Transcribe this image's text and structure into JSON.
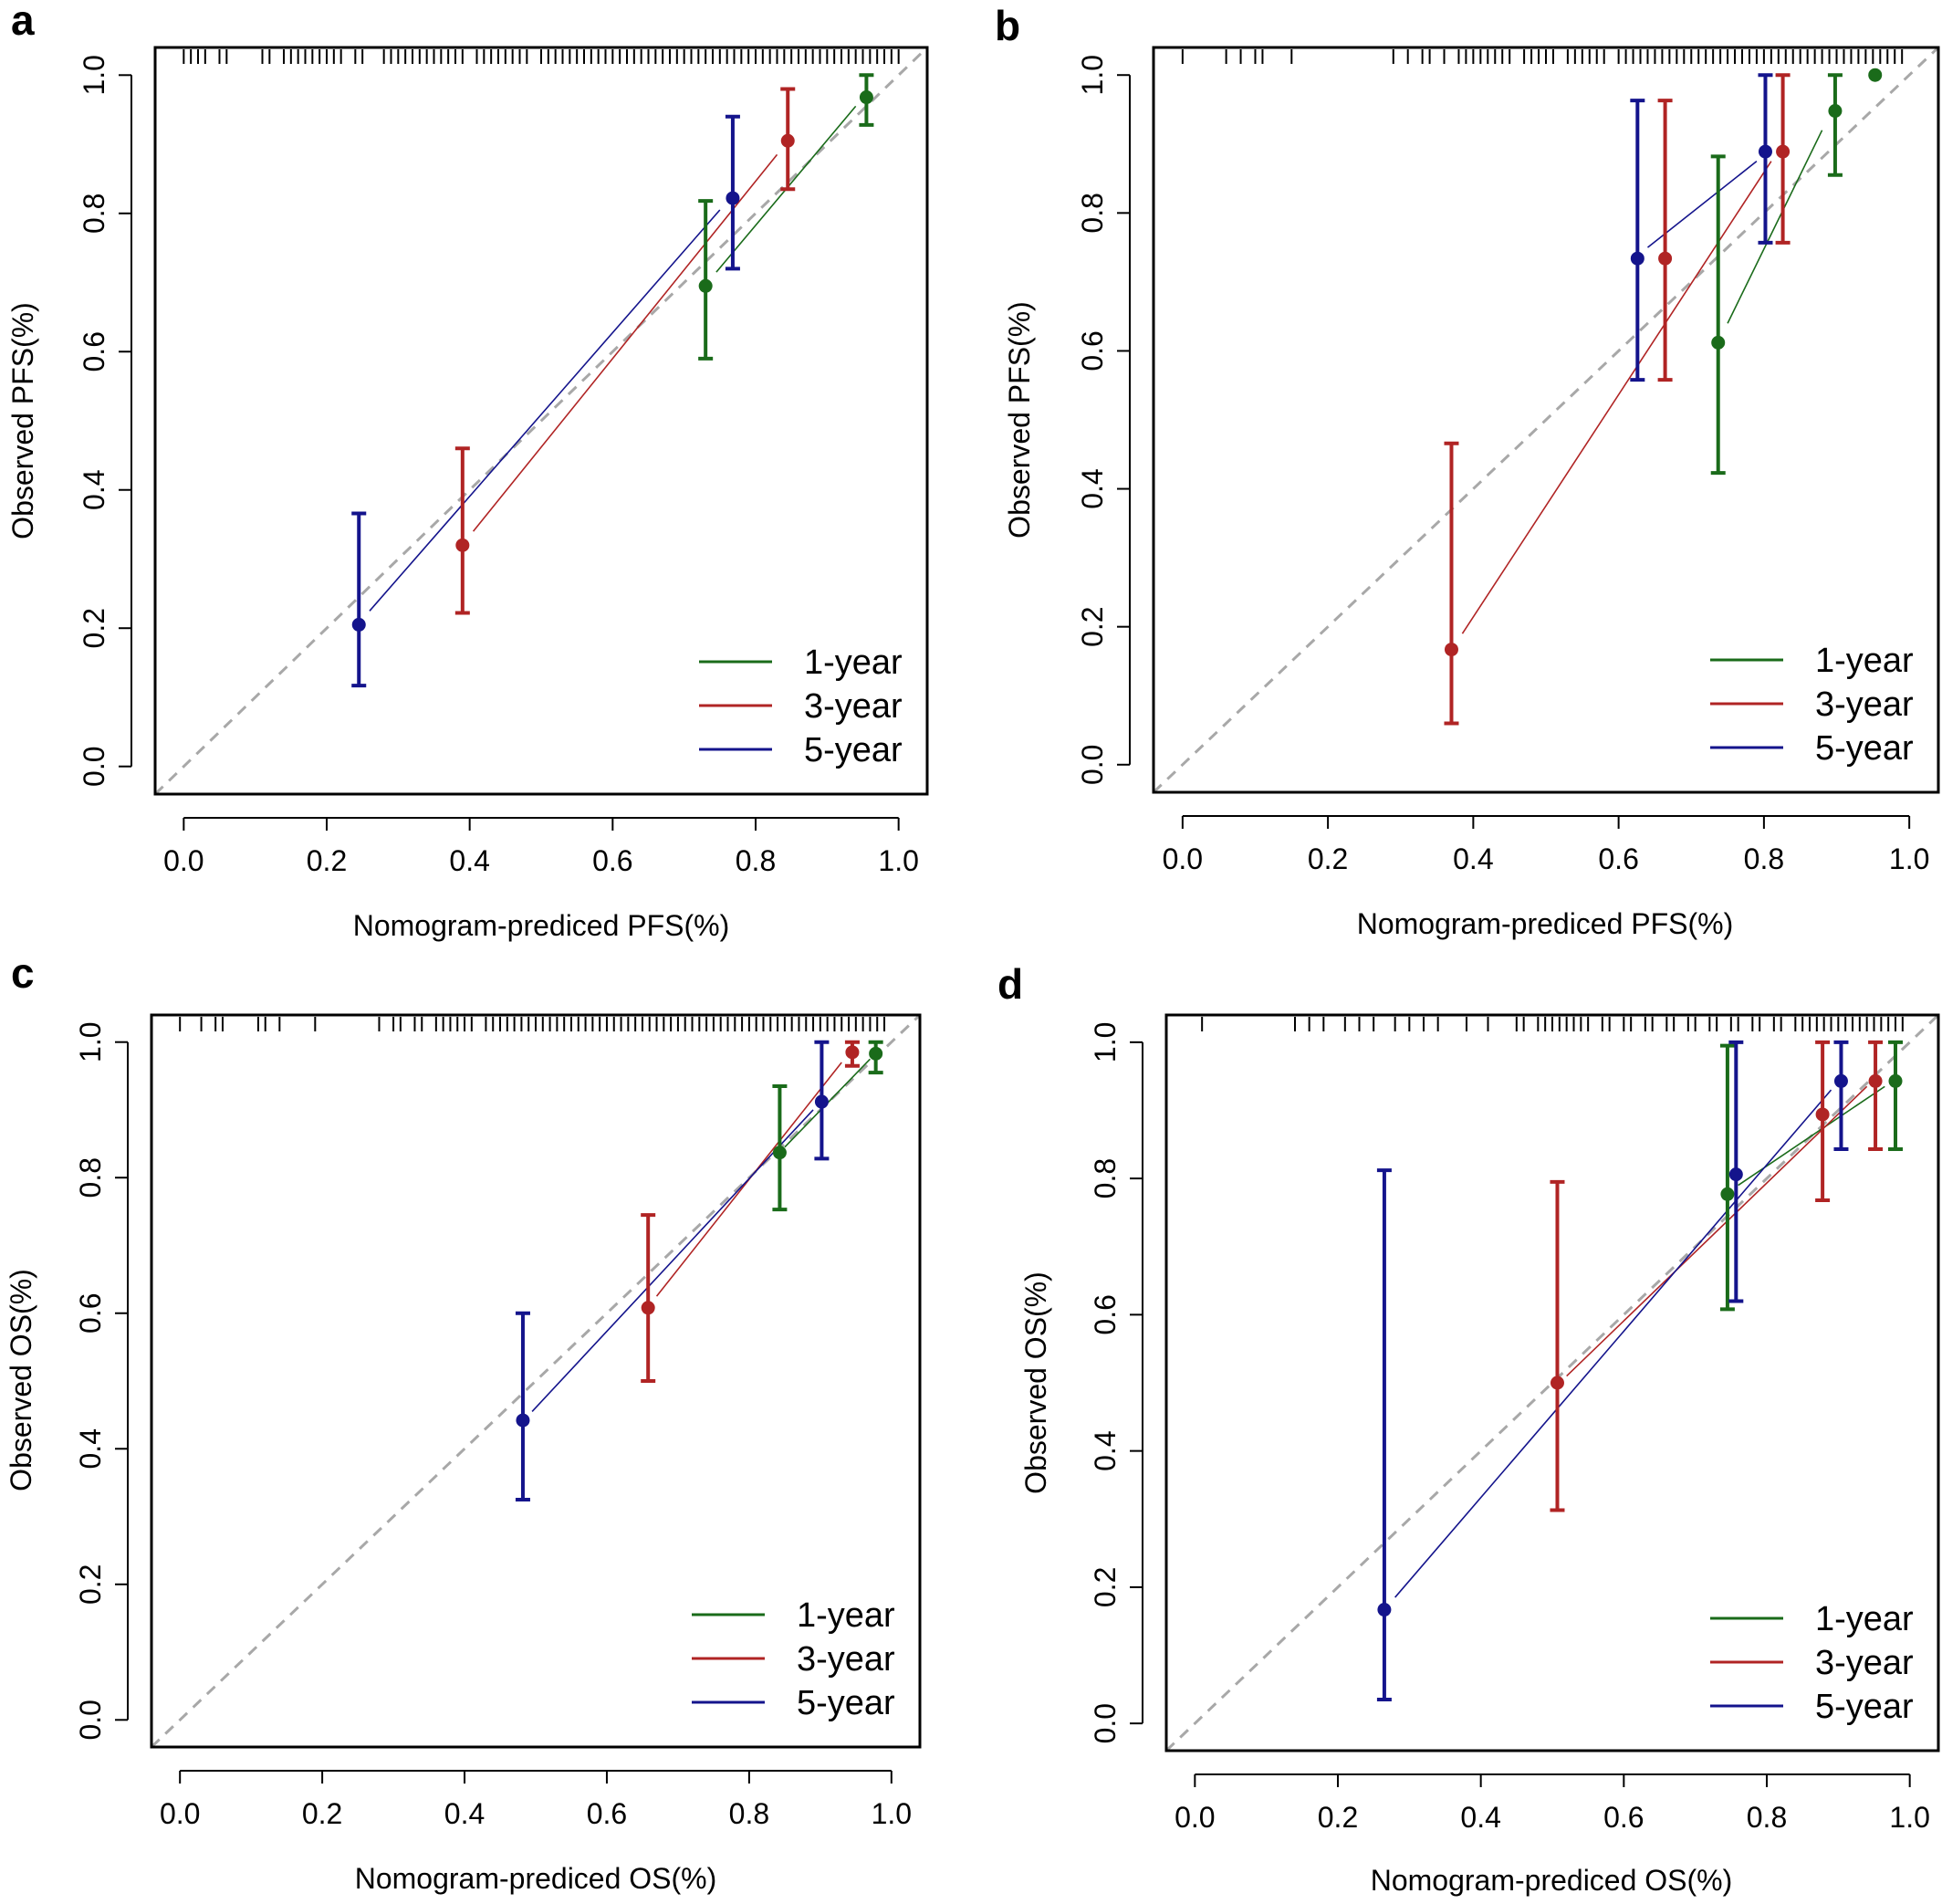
{
  "figure": {
    "panels": [
      {
        "panel_label": "a",
        "chart_data": {
          "type": "scatter",
          "subtype": "calibration-plot",
          "xlabel": "Nomogram-prediced PFS(%)",
          "ylabel": "Observed PFS(%)",
          "xlim": [
            -0.04,
            1.04
          ],
          "ylim": [
            -0.04,
            1.04
          ],
          "xticks": [
            "0.0",
            "0.2",
            "0.4",
            "0.6",
            "0.8",
            "1.0"
          ],
          "yticks": [
            "0.0",
            "0.2",
            "0.4",
            "0.6",
            "0.8",
            "1.0"
          ],
          "reference_line": "diagonal-dashed-gray",
          "legend_position": "bottom-right",
          "rug_top": [
            0.0,
            0.01,
            0.02,
            0.03,
            0.05,
            0.06,
            0.11,
            0.12,
            0.14,
            0.15,
            0.16,
            0.17,
            0.18,
            0.19,
            0.2,
            0.21,
            0.22,
            0.24,
            0.25,
            0.28,
            0.29,
            0.3,
            0.31,
            0.32,
            0.33,
            0.34,
            0.35,
            0.36,
            0.37,
            0.38,
            0.39,
            0.41,
            0.42,
            0.43,
            0.44,
            0.45,
            0.46,
            0.47,
            0.48,
            0.5,
            0.51,
            0.52,
            0.53,
            0.54,
            0.55,
            0.56,
            0.57,
            0.58,
            0.59,
            0.6,
            0.61,
            0.62,
            0.63,
            0.64,
            0.65,
            0.66,
            0.67,
            0.68,
            0.69,
            0.7,
            0.71,
            0.72,
            0.73,
            0.74,
            0.75,
            0.76,
            0.77,
            0.78,
            0.79,
            0.8,
            0.81,
            0.82,
            0.83,
            0.84,
            0.85,
            0.86,
            0.87,
            0.88,
            0.89,
            0.9,
            0.91,
            0.92,
            0.93,
            0.94,
            0.95,
            0.96,
            0.97,
            0.98,
            0.99,
            1.0
          ],
          "series": [
            {
              "name": "1-year",
              "color": "#1a6b1a",
              "points": [
                {
                  "x": 0.73,
                  "y": 0.695,
                  "lo": 0.59,
                  "hi": 0.818
                },
                {
                  "x": 0.955,
                  "y": 0.968,
                  "lo": 0.928,
                  "hi": 1.0
                }
              ],
              "fit": [
                [
                  0.745,
                  0.715
                ],
                [
                  0.94,
                  0.955
                ]
              ]
            },
            {
              "name": "3-year",
              "color": "#b02424",
              "points": [
                {
                  "x": 0.39,
                  "y": 0.32,
                  "lo": 0.222,
                  "hi": 0.46
                },
                {
                  "x": 0.845,
                  "y": 0.905,
                  "lo": 0.835,
                  "hi": 0.98
                }
              ],
              "fit": [
                [
                  0.405,
                  0.34
                ],
                [
                  0.83,
                  0.885
                ]
              ]
            },
            {
              "name": "5-year",
              "color": "#14148c",
              "points": [
                {
                  "x": 0.245,
                  "y": 0.205,
                  "lo": 0.117,
                  "hi": 0.366
                },
                {
                  "x": 0.768,
                  "y": 0.822,
                  "lo": 0.72,
                  "hi": 0.94
                }
              ],
              "fit": [
                [
                  0.26,
                  0.225
                ],
                [
                  0.75,
                  0.805
                ]
              ]
            }
          ]
        }
      },
      {
        "panel_label": "b",
        "chart_data": {
          "type": "scatter",
          "subtype": "calibration-plot",
          "xlabel": "Nomogram-prediced PFS(%)",
          "ylabel": "Observed PFS(%)",
          "xlim": [
            -0.04,
            1.04
          ],
          "ylim": [
            -0.04,
            1.04
          ],
          "xticks": [
            "0.0",
            "0.2",
            "0.4",
            "0.6",
            "0.8",
            "1.0"
          ],
          "yticks": [
            "0.0",
            "0.2",
            "0.4",
            "0.6",
            "0.8",
            "1.0"
          ],
          "reference_line": "diagonal-dashed-gray",
          "legend_position": "bottom-right",
          "rug_top": [
            0.0,
            0.06,
            0.08,
            0.1,
            0.11,
            0.15,
            0.29,
            0.31,
            0.33,
            0.34,
            0.36,
            0.38,
            0.39,
            0.4,
            0.41,
            0.42,
            0.43,
            0.44,
            0.45,
            0.47,
            0.48,
            0.49,
            0.5,
            0.51,
            0.53,
            0.54,
            0.55,
            0.56,
            0.57,
            0.58,
            0.6,
            0.61,
            0.62,
            0.63,
            0.64,
            0.65,
            0.66,
            0.67,
            0.68,
            0.69,
            0.7,
            0.71,
            0.72,
            0.73,
            0.74,
            0.75,
            0.76,
            0.77,
            0.78,
            0.79,
            0.8,
            0.81,
            0.82,
            0.83,
            0.84,
            0.85,
            0.86,
            0.87,
            0.88,
            0.89,
            0.9,
            0.91,
            0.92,
            0.93,
            0.94,
            0.95,
            0.96,
            0.97,
            0.98,
            0.99
          ],
          "series": [
            {
              "name": "1-year",
              "color": "#1a6b1a",
              "points": [
                {
                  "x": 0.737,
                  "y": 0.612,
                  "lo": 0.423,
                  "hi": 0.882
                },
                {
                  "x": 0.898,
                  "y": 0.948,
                  "lo": 0.855,
                  "hi": 1.0
                },
                {
                  "x": 0.953,
                  "y": 1.0,
                  "lo": null,
                  "hi": null
                }
              ],
              "fit": [
                [
                  0.75,
                  0.64
                ],
                [
                  0.88,
                  0.92
                ]
              ]
            },
            {
              "name": "3-year",
              "color": "#b02424",
              "points": [
                {
                  "x": 0.37,
                  "y": 0.167,
                  "lo": 0.06,
                  "hi": 0.466
                },
                {
                  "x": 0.664,
                  "y": 0.734,
                  "lo": 0.558,
                  "hi": 0.963
                },
                {
                  "x": 0.826,
                  "y": 0.889,
                  "lo": 0.757,
                  "hi": 1.0
                }
              ],
              "fit": [
                [
                  0.385,
                  0.19
                ],
                [
                  0.81,
                  0.875
                ]
              ]
            },
            {
              "name": "5-year",
              "color": "#14148c",
              "points": [
                {
                  "x": 0.626,
                  "y": 0.734,
                  "lo": 0.558,
                  "hi": 0.963
                },
                {
                  "x": 0.802,
                  "y": 0.889,
                  "lo": 0.757,
                  "hi": 1.0
                }
              ],
              "fit": [
                [
                  0.64,
                  0.75
                ],
                [
                  0.79,
                  0.875
                ]
              ]
            }
          ]
        }
      },
      {
        "panel_label": "c",
        "chart_data": {
          "type": "scatter",
          "subtype": "calibration-plot",
          "xlabel": "Nomogram-prediced OS(%)",
          "ylabel": "Observed OS(%)",
          "xlim": [
            -0.04,
            1.04
          ],
          "ylim": [
            -0.04,
            1.04
          ],
          "xticks": [
            "0.0",
            "0.2",
            "0.4",
            "0.6",
            "0.8",
            "1.0"
          ],
          "yticks": [
            "0.0",
            "0.2",
            "0.4",
            "0.6",
            "0.8",
            "1.0"
          ],
          "reference_line": "diagonal-dashed-gray",
          "legend_position": "bottom-right",
          "rug_top": [
            0.0,
            0.03,
            0.05,
            0.06,
            0.11,
            0.12,
            0.14,
            0.19,
            0.28,
            0.3,
            0.31,
            0.33,
            0.34,
            0.36,
            0.37,
            0.38,
            0.39,
            0.4,
            0.41,
            0.43,
            0.44,
            0.45,
            0.46,
            0.47,
            0.48,
            0.49,
            0.5,
            0.51,
            0.52,
            0.53,
            0.54,
            0.55,
            0.56,
            0.57,
            0.58,
            0.59,
            0.6,
            0.61,
            0.62,
            0.63,
            0.64,
            0.65,
            0.66,
            0.67,
            0.68,
            0.69,
            0.7,
            0.71,
            0.72,
            0.73,
            0.74,
            0.75,
            0.76,
            0.77,
            0.78,
            0.79,
            0.8,
            0.81,
            0.82,
            0.83,
            0.84,
            0.85,
            0.86,
            0.87,
            0.88,
            0.89,
            0.9,
            0.91,
            0.92,
            0.93,
            0.94,
            0.95,
            0.96,
            0.97,
            0.98,
            0.99
          ],
          "series": [
            {
              "name": "1-year",
              "color": "#1a6b1a",
              "points": [
                {
                  "x": 0.843,
                  "y": 0.837,
                  "lo": 0.753,
                  "hi": 0.935
                },
                {
                  "x": 0.978,
                  "y": 0.983,
                  "lo": 0.955,
                  "hi": 1.0
                }
              ],
              "fit": [
                [
                  0.85,
                  0.845
                ],
                [
                  0.97,
                  0.975
                ]
              ]
            },
            {
              "name": "3-year",
              "color": "#b02424",
              "points": [
                {
                  "x": 0.658,
                  "y": 0.608,
                  "lo": 0.5,
                  "hi": 0.745
                },
                {
                  "x": 0.945,
                  "y": 0.985,
                  "lo": 0.965,
                  "hi": 1.0
                }
              ],
              "fit": [
                [
                  0.67,
                  0.625
                ],
                [
                  0.93,
                  0.97
                ]
              ]
            },
            {
              "name": "5-year",
              "color": "#14148c",
              "points": [
                {
                  "x": 0.482,
                  "y": 0.442,
                  "lo": 0.325,
                  "hi": 0.6
                },
                {
                  "x": 0.902,
                  "y": 0.912,
                  "lo": 0.828,
                  "hi": 1.0
                }
              ],
              "fit": [
                [
                  0.495,
                  0.455
                ],
                [
                  0.89,
                  0.9
                ]
              ]
            }
          ]
        }
      },
      {
        "panel_label": "d",
        "chart_data": {
          "type": "scatter",
          "subtype": "calibration-plot",
          "xlabel": "Nomogram-prediced OS(%)",
          "ylabel": "Observed OS(%)",
          "xlim": [
            -0.04,
            1.04
          ],
          "ylim": [
            -0.04,
            1.04
          ],
          "xticks": [
            "0.0",
            "0.2",
            "0.4",
            "0.6",
            "0.8",
            "1.0"
          ],
          "yticks": [
            "0.0",
            "0.2",
            "0.4",
            "0.6",
            "0.8",
            "1.0"
          ],
          "reference_line": "diagonal-dashed-gray",
          "legend_position": "bottom-right",
          "rug_top": [
            0.01,
            0.14,
            0.16,
            0.18,
            0.21,
            0.23,
            0.25,
            0.28,
            0.3,
            0.32,
            0.34,
            0.38,
            0.41,
            0.45,
            0.46,
            0.48,
            0.49,
            0.5,
            0.51,
            0.52,
            0.53,
            0.54,
            0.55,
            0.57,
            0.58,
            0.6,
            0.61,
            0.63,
            0.64,
            0.66,
            0.67,
            0.69,
            0.7,
            0.72,
            0.73,
            0.75,
            0.76,
            0.78,
            0.79,
            0.81,
            0.82,
            0.84,
            0.85,
            0.86,
            0.87,
            0.88,
            0.89,
            0.9,
            0.91,
            0.92,
            0.93,
            0.94,
            0.95,
            0.96,
            0.97,
            0.98,
            0.99
          ],
          "series": [
            {
              "name": "1-year",
              "color": "#1a6b1a",
              "points": [
                {
                  "x": 0.745,
                  "y": 0.777,
                  "lo": 0.608,
                  "hi": 0.995
                },
                {
                  "x": 0.98,
                  "y": 0.943,
                  "lo": 0.843,
                  "hi": 1.0
                }
              ],
              "fit": [
                [
                  0.76,
                  0.79
                ],
                [
                  0.965,
                  0.935
                ]
              ]
            },
            {
              "name": "3-year",
              "color": "#b02424",
              "points": [
                {
                  "x": 0.507,
                  "y": 0.5,
                  "lo": 0.313,
                  "hi": 0.795
                },
                {
                  "x": 0.878,
                  "y": 0.894,
                  "lo": 0.768,
                  "hi": 1.0
                },
                {
                  "x": 0.952,
                  "y": 0.943,
                  "lo": 0.843,
                  "hi": 1.0
                }
              ],
              "fit": [
                [
                  0.52,
                  0.51
                ],
                [
                  0.94,
                  0.935
                ]
              ]
            },
            {
              "name": "5-year",
              "color": "#14148c",
              "points": [
                {
                  "x": 0.265,
                  "y": 0.167,
                  "lo": 0.035,
                  "hi": 0.812
                },
                {
                  "x": 0.757,
                  "y": 0.806,
                  "lo": 0.62,
                  "hi": 1.0
                },
                {
                  "x": 0.904,
                  "y": 0.943,
                  "lo": 0.843,
                  "hi": 1.0
                }
              ],
              "fit": [
                [
                  0.28,
                  0.185
                ],
                [
                  0.89,
                  0.93
                ]
              ]
            }
          ]
        }
      }
    ]
  }
}
